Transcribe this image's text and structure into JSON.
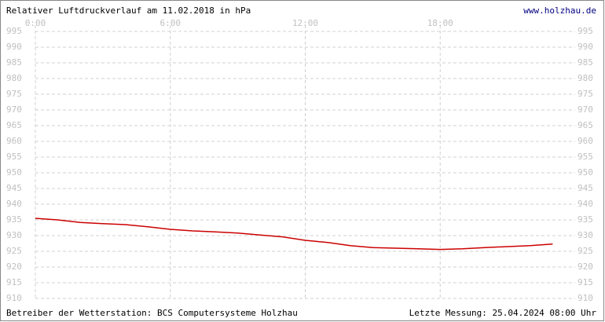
{
  "chart_data": {
    "type": "line",
    "title": "Relativer Luftdruckverlauf am 11.02.2018 in hPa",
    "source": "www.holzhau.de",
    "footer_left": "Betreiber der Wetterstation: BCS Computersysteme Holzhau",
    "footer_right": "Letzte Messung: 25.04.2024 08:00 Uhr",
    "x": [
      0,
      1,
      2,
      3,
      4,
      5,
      6,
      7,
      8,
      9,
      10,
      11,
      12,
      13,
      14,
      15,
      16,
      17,
      18,
      19,
      20,
      21,
      22,
      23
    ],
    "series": [
      {
        "name": "Luftdruck",
        "color": "#cc0000",
        "values": [
          935.5,
          935,
          934.2,
          933.8,
          933.5,
          932.8,
          932,
          931.5,
          931.2,
          930.8,
          930.2,
          929.6,
          928.5,
          927.8,
          926.8,
          926.2,
          926,
          925.8,
          925.6,
          925.8,
          926.2,
          926.5,
          926.8,
          927.3
        ]
      }
    ],
    "xlim": [
      0,
      24
    ],
    "xticks": [
      {
        "value": 0,
        "label": "0:00"
      },
      {
        "value": 6,
        "label": "6:00"
      },
      {
        "value": 12,
        "label": "12:00"
      },
      {
        "value": 18,
        "label": "18:00"
      }
    ],
    "ylim": [
      910,
      995
    ],
    "yticks": [
      910,
      915,
      920,
      925,
      930,
      935,
      940,
      945,
      950,
      955,
      960,
      965,
      970,
      975,
      980,
      985,
      990,
      995
    ],
    "grid": true
  }
}
